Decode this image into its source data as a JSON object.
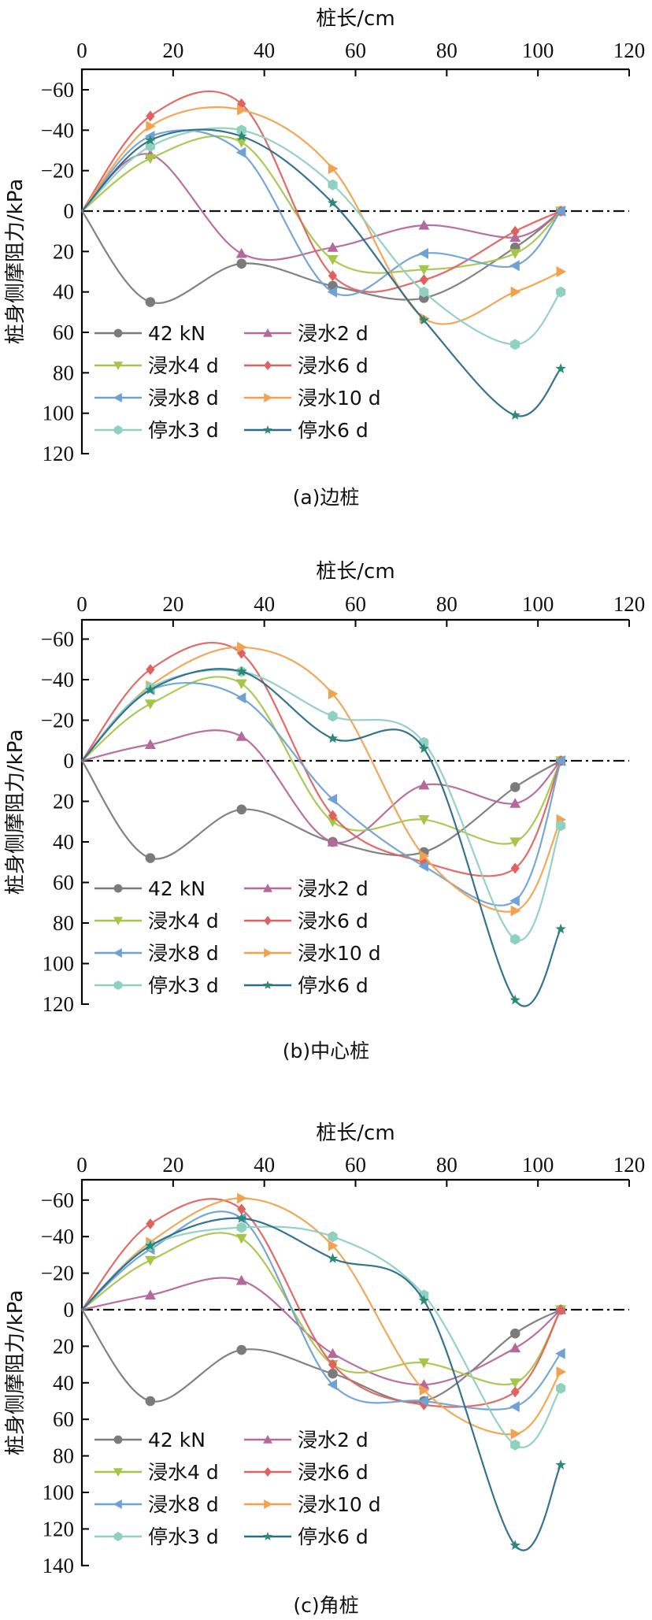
{
  "chart_data": [
    {
      "type": "line",
      "title": "(a)边桩",
      "xlabel": "桩长/cm",
      "ylabel": "桩身侧摩阻力/kPa",
      "xlim": [
        0,
        120
      ],
      "ylim": [
        -70,
        120
      ],
      "y_inverted": true,
      "x_axis_position": "top",
      "xticks": [
        0,
        20,
        40,
        60,
        80,
        100,
        120
      ],
      "yticks": [
        -60,
        -40,
        -20,
        0,
        20,
        40,
        60,
        80,
        100,
        120
      ],
      "ytick_labels": [
        "−60",
        "−40",
        "−20",
        "0",
        "20",
        "40",
        "60",
        "80",
        "100",
        "120"
      ],
      "grid": false,
      "zero_reference_line": true,
      "legend_placement": "lower-left",
      "x": [
        0,
        15,
        35,
        55,
        75,
        95,
        105
      ],
      "series": [
        {
          "name": "42 kN",
          "color": "#7b7b7b",
          "marker": "circle",
          "values": [
            0,
            45,
            26,
            37,
            43,
            18,
            0
          ]
        },
        {
          "name": "浸水2 d",
          "color": "#b5689a",
          "marker": "triangle-up",
          "values": [
            0,
            -28,
            21,
            18,
            7,
            13,
            0
          ]
        },
        {
          "name": "浸水4 d",
          "color": "#a6c64a",
          "marker": "triangle-down",
          "values": [
            0,
            -26,
            -34,
            24,
            29,
            21,
            0
          ]
        },
        {
          "name": "浸水6 d",
          "color": "#e0625f",
          "marker": "diamond",
          "values": [
            0,
            -47,
            -53,
            32,
            34,
            10,
            0
          ]
        },
        {
          "name": "浸水8 d",
          "color": "#6fa2d4",
          "marker": "triangle-left",
          "values": [
            0,
            -37,
            -29,
            40,
            21,
            27,
            0
          ]
        },
        {
          "name": "浸水10 d",
          "color": "#f2a24e",
          "marker": "triangle-right",
          "values": [
            0,
            -42,
            -50,
            -21,
            53,
            40,
            30
          ]
        },
        {
          "name": "停水3 d",
          "color": "#8fd0bf",
          "marker": "hexagon",
          "values": [
            0,
            -32,
            -40,
            -13,
            40,
            66,
            40
          ]
        },
        {
          "name": "停水6 d",
          "color": "#2a6c8c",
          "marker_color": "#2a8a74",
          "marker": "star",
          "values": [
            0,
            -35,
            -37,
            -4,
            54,
            101,
            78
          ]
        }
      ]
    },
    {
      "type": "line",
      "title": "(b)中心桩",
      "xlabel": "桩长/cm",
      "ylabel": "桩身侧摩阻力/kPa",
      "xlim": [
        0,
        120
      ],
      "ylim": [
        -70,
        120
      ],
      "y_inverted": true,
      "x_axis_position": "top",
      "xticks": [
        0,
        20,
        40,
        60,
        80,
        100,
        120
      ],
      "yticks": [
        -60,
        -40,
        -20,
        0,
        20,
        40,
        60,
        80,
        100,
        120
      ],
      "ytick_labels": [
        "−60",
        "−40",
        "−20",
        "0",
        "20",
        "40",
        "60",
        "80",
        "100",
        "120"
      ],
      "grid": false,
      "zero_reference_line": true,
      "legend_placement": "lower-left",
      "x": [
        0,
        15,
        35,
        55,
        75,
        95,
        105
      ],
      "series": [
        {
          "name": "42 kN",
          "color": "#7b7b7b",
          "marker": "circle",
          "values": [
            0,
            48,
            24,
            40,
            45,
            13,
            0
          ]
        },
        {
          "name": "浸水2 d",
          "color": "#b5689a",
          "marker": "triangle-up",
          "values": [
            0,
            -8,
            -12,
            40,
            12,
            21,
            0
          ]
        },
        {
          "name": "浸水4 d",
          "color": "#a6c64a",
          "marker": "triangle-down",
          "values": [
            0,
            -28,
            -38,
            30,
            29,
            40,
            0
          ]
        },
        {
          "name": "浸水6 d",
          "color": "#e0625f",
          "marker": "diamond",
          "values": [
            0,
            -45,
            -53,
            27,
            50,
            53,
            0
          ]
        },
        {
          "name": "浸水8 d",
          "color": "#6fa2d4",
          "marker": "triangle-left",
          "values": [
            0,
            -35,
            -31,
            19,
            52,
            69,
            0
          ]
        },
        {
          "name": "浸水10 d",
          "color": "#f2a24e",
          "marker": "triangle-right",
          "values": [
            0,
            -37,
            -56,
            -33,
            47,
            74,
            29
          ]
        },
        {
          "name": "停水3 d",
          "color": "#8fd0bf",
          "marker": "hexagon",
          "values": [
            0,
            -36,
            -44,
            -22,
            -9,
            88,
            32
          ]
        },
        {
          "name": "停水6 d",
          "color": "#2a6c8c",
          "marker_color": "#2a8a74",
          "marker": "star",
          "values": [
            0,
            -35,
            -44,
            -11,
            -6,
            118,
            83
          ]
        }
      ]
    },
    {
      "type": "line",
      "title": "(c)角桩",
      "xlabel": "桩长/cm",
      "ylabel": "桩身侧摩阻力/kPa",
      "xlim": [
        0,
        120
      ],
      "ylim": [
        -70,
        140
      ],
      "y_inverted": true,
      "x_axis_position": "top",
      "xticks": [
        0,
        20,
        40,
        60,
        80,
        100,
        120
      ],
      "yticks": [
        -60,
        -40,
        -20,
        0,
        20,
        40,
        60,
        80,
        100,
        120,
        140
      ],
      "ytick_labels": [
        "−60",
        "−40",
        "−20",
        "0",
        "20",
        "40",
        "60",
        "80",
        "100",
        "120",
        "140"
      ],
      "grid": false,
      "zero_reference_line": true,
      "legend_placement": "lower-left",
      "x": [
        0,
        15,
        35,
        55,
        75,
        95,
        105
      ],
      "series": [
        {
          "name": "42 kN",
          "color": "#7b7b7b",
          "marker": "circle",
          "values": [
            0,
            50,
            22,
            35,
            50,
            13,
            0
          ]
        },
        {
          "name": "浸水2 d",
          "color": "#b5689a",
          "marker": "triangle-up",
          "values": [
            0,
            -8,
            -16,
            24,
            41,
            21,
            0
          ]
        },
        {
          "name": "浸水4 d",
          "color": "#a6c64a",
          "marker": "triangle-down",
          "values": [
            0,
            -27,
            -39,
            30,
            29,
            40,
            0
          ]
        },
        {
          "name": "浸水6 d",
          "color": "#e0625f",
          "marker": "diamond",
          "values": [
            0,
            -47,
            -55,
            30,
            52,
            45,
            0
          ]
        },
        {
          "name": "浸水8 d",
          "color": "#6fa2d4",
          "marker": "triangle-left",
          "values": [
            0,
            -33,
            -50,
            41,
            50,
            53,
            24
          ]
        },
        {
          "name": "浸水10 d",
          "color": "#f2a24e",
          "marker": "triangle-right",
          "values": [
            0,
            -37,
            -61,
            -35,
            44,
            68,
            34
          ]
        },
        {
          "name": "停水3 d",
          "color": "#8fd0bf",
          "marker": "hexagon",
          "values": [
            0,
            -35,
            -45,
            -40,
            -8,
            74,
            43
          ]
        },
        {
          "name": "停水6 d",
          "color": "#2a6c8c",
          "marker_color": "#2a8a74",
          "marker": "star",
          "values": [
            0,
            -35,
            -50,
            -28,
            -5,
            129,
            85
          ]
        }
      ]
    }
  ]
}
